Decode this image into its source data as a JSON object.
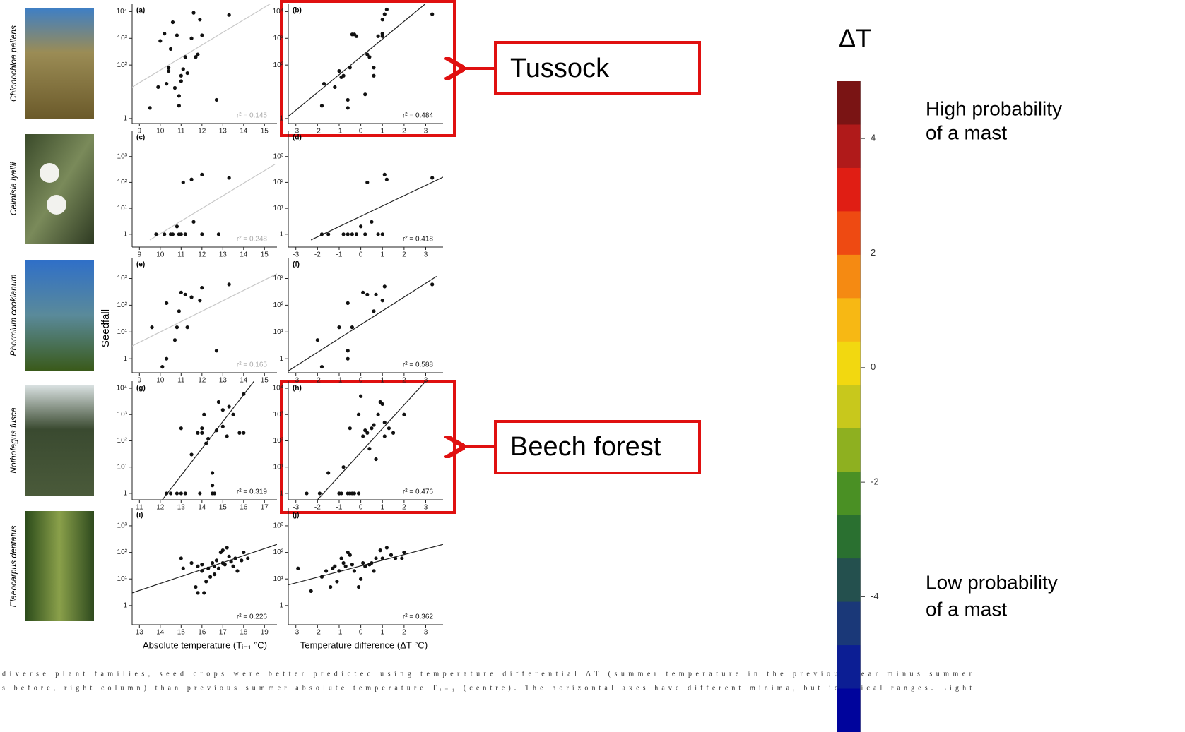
{
  "figure": {
    "y_label": "Seedfall",
    "species": [
      "Chionochloa pallens",
      "Celmisia lyallii",
      "Phormium cookianum",
      "Nothofagus fusca",
      "Elaeocarpus dentatus"
    ],
    "x_labels": [
      "Absolute temperature (Tᵢ₋₁ °C)",
      "Temperature difference (ΔT °C)"
    ],
    "log_y": true,
    "panels": [
      {
        "label": "(a)",
        "xlim": [
          8.65,
          15.6
        ],
        "xticks": [
          9,
          10,
          11,
          12,
          13,
          14,
          15
        ],
        "ylim": [
          0.65,
          20000
        ],
        "yticks": [
          1,
          {
            "value": 100,
            "label": "10²"
          },
          {
            "value": 1000,
            "label": "10³"
          },
          {
            "value": 10000,
            "label": "10⁴"
          }
        ],
        "x": [
          9.5,
          9.9,
          10,
          10.2,
          10.3,
          10.4,
          10.4,
          10.5,
          10.6,
          10.7,
          10.8,
          10.9,
          10.9,
          11,
          11,
          11.1,
          11.2,
          11.3,
          11.5,
          11.6,
          11.7,
          11.8,
          11.9,
          12,
          12.7,
          13.3
        ],
        "y": [
          2.5,
          15,
          800,
          1500,
          20,
          60,
          80,
          400,
          4000,
          14,
          1300,
          3,
          7,
          40,
          25,
          70,
          200,
          50,
          1000,
          9000,
          200,
          250,
          5000,
          1300,
          5,
          7500
        ],
        "fit_x": [
          8.65,
          15.3
        ],
        "fit_y": [
          15,
          20000
        ],
        "fit_color": "#c8c8c8",
        "r2": "r² = 0.145"
      },
      {
        "label": "(b)",
        "xlim": [
          -3.35,
          3.8
        ],
        "xticks": [
          -3,
          -2,
          -1,
          0,
          1,
          2,
          3
        ],
        "ylim": [
          0.65,
          20000
        ],
        "yticks": [
          1,
          {
            "value": 100,
            "label": "10²"
          },
          {
            "value": 1000,
            "label": "10³"
          },
          {
            "value": 10000,
            "label": "10⁴"
          }
        ],
        "x": [
          -1.8,
          -1.7,
          -1.2,
          -1,
          -0.9,
          -0.8,
          -0.6,
          -0.6,
          -0.5,
          -0.4,
          -0.3,
          -0.2,
          0.2,
          0.3,
          0.4,
          0.6,
          0.6,
          0.8,
          1,
          1,
          1,
          1.1,
          1.2,
          3.3
        ],
        "y": [
          3,
          20,
          15,
          60,
          35,
          40,
          2.5,
          5,
          80,
          1400,
          1400,
          1200,
          8,
          250,
          200,
          40,
          80,
          1200,
          1200,
          1500,
          5000,
          8000,
          12000,
          8000
        ],
        "fit_x": [
          -3.35,
          3
        ],
        "fit_y": [
          1.2,
          20000
        ],
        "fit_color": "#222222",
        "r2": "r² = 0.484"
      },
      {
        "label": "(c)",
        "xlim": [
          8.65,
          15.6
        ],
        "xticks": [
          9,
          10,
          11,
          12,
          13,
          14,
          15
        ],
        "ylim": [
          0.32,
          10000
        ],
        "yticks": [
          1,
          {
            "value": 10,
            "label": "10¹"
          },
          {
            "value": 100,
            "label": "10²"
          },
          {
            "value": 1000,
            "label": "10³"
          }
        ],
        "x": [
          9.8,
          10.2,
          10.5,
          10.6,
          10.8,
          10.9,
          11,
          11.1,
          11.2,
          11.5,
          11.6,
          12,
          12,
          12.8,
          13.3
        ],
        "y": [
          1,
          1,
          1,
          1,
          2,
          1,
          1,
          100,
          1,
          130,
          3,
          200,
          1,
          1,
          150
        ],
        "fit_x": [
          9.5,
          15.5
        ],
        "fit_y": [
          0.6,
          500
        ],
        "fit_color": "#c8c8c8",
        "r2": "r² = 0.248"
      },
      {
        "label": "(d)",
        "xlim": [
          -3.35,
          3.8
        ],
        "xticks": [
          -3,
          -2,
          -1,
          0,
          1,
          2,
          3
        ],
        "ylim": [
          0.32,
          10000
        ],
        "yticks": [
          1,
          {
            "value": 10,
            "label": "10¹"
          },
          {
            "value": 100,
            "label": "10²"
          },
          {
            "value": 1000,
            "label": "10³"
          }
        ],
        "x": [
          -1.8,
          -1.5,
          -0.8,
          -0.6,
          -0.4,
          -0.2,
          0,
          0.2,
          0.3,
          0.5,
          0.8,
          1,
          1.1,
          1.2,
          3.3
        ],
        "y": [
          1,
          1,
          1,
          1,
          1,
          1,
          2,
          1,
          100,
          3,
          1,
          1,
          200,
          130,
          150
        ],
        "fit_x": [
          -2.3,
          3.8
        ],
        "fit_y": [
          0.6,
          160
        ],
        "fit_color": "#222222",
        "r2": "r² = 0.418"
      },
      {
        "label": "(e)",
        "xlim": [
          8.65,
          15.6
        ],
        "xticks": [
          9,
          10,
          11,
          12,
          13,
          14,
          15
        ],
        "ylim": [
          0.3,
          6000
        ],
        "yticks": [
          1,
          {
            "value": 10,
            "label": "10¹"
          },
          {
            "value": 100,
            "label": "10²"
          },
          {
            "value": 1000,
            "label": "10³"
          }
        ],
        "x": [
          9.6,
          10.1,
          10.3,
          10.3,
          10.7,
          10.8,
          10.9,
          11,
          11.2,
          11.3,
          11.5,
          11.9,
          12,
          12.7,
          13.3
        ],
        "y": [
          15,
          0.5,
          1,
          120,
          5,
          15,
          60,
          300,
          250,
          15,
          200,
          150,
          450,
          2,
          600
        ],
        "fit_x": [
          8.65,
          15.6
        ],
        "fit_y": [
          3,
          1500
        ],
        "fit_color": "#c8c8c8",
        "r2": "r² = 0.165"
      },
      {
        "label": "(f)",
        "xlim": [
          -3.35,
          3.8
        ],
        "xticks": [
          -3,
          -2,
          -1,
          0,
          1,
          2,
          3
        ],
        "ylim": [
          0.3,
          6000
        ],
        "yticks": [
          1,
          {
            "value": 10,
            "label": "10¹"
          },
          {
            "value": 100,
            "label": "10²"
          },
          {
            "value": 1000,
            "label": "10³"
          }
        ],
        "x": [
          -2,
          -1.8,
          -1,
          -0.6,
          -0.6,
          -0.6,
          -0.4,
          0.1,
          0.3,
          0.6,
          0.7,
          1,
          1.1,
          3.3
        ],
        "y": [
          5,
          0.5,
          15,
          1,
          2,
          120,
          15,
          300,
          250,
          60,
          250,
          150,
          500,
          600
        ],
        "fit_x": [
          -3.35,
          3.5
        ],
        "fit_y": [
          0.35,
          1200
        ],
        "fit_color": "#222222",
        "r2": "r² = 0.588"
      },
      {
        "label": "(g)",
        "xlim": [
          10.65,
          17.6
        ],
        "xticks": [
          11,
          12,
          13,
          14,
          15,
          16,
          17
        ],
        "ylim": [
          0.57,
          18600
        ],
        "yticks": [
          1,
          {
            "value": 10,
            "label": "10¹"
          },
          {
            "value": 100,
            "label": "10²"
          },
          {
            "value": 1000,
            "label": "10³"
          },
          {
            "value": 10000,
            "label": "10⁴"
          }
        ],
        "x": [
          12.3,
          12.5,
          12.8,
          13,
          13.2,
          13,
          13.5,
          13.8,
          13.9,
          14,
          14,
          14.1,
          14.2,
          14.3,
          14.5,
          14.5,
          14.5,
          14.6,
          14.7,
          14.8,
          15,
          15,
          15.2,
          15.3,
          15.5,
          15.8,
          16,
          16
        ],
        "y": [
          1,
          1,
          1,
          1,
          1,
          300,
          30,
          200,
          1,
          300,
          200,
          1000,
          80,
          120,
          6,
          2,
          1,
          1,
          250,
          3000,
          1500,
          350,
          150,
          2000,
          1000,
          200,
          6000,
          200
        ],
        "fit_x": [
          12.1,
          16.5
        ],
        "fit_y": [
          0.57,
          18600
        ],
        "fit_color": "#222222",
        "r2": "r² = 0.319"
      },
      {
        "label": "(h)",
        "xlim": [
          -3.35,
          3.8
        ],
        "xticks": [
          -3,
          -2,
          -1,
          0,
          1,
          2,
          3
        ],
        "ylim": [
          0.57,
          18600
        ],
        "yticks": [
          1,
          {
            "value": 10,
            "label": "10¹"
          },
          {
            "value": 100,
            "label": "10²"
          },
          {
            "value": 1000,
            "label": "10³"
          },
          {
            "value": 10000,
            "label": "10⁴"
          }
        ],
        "x": [
          -2.5,
          -1.9,
          -1.5,
          -1,
          -1,
          -0.9,
          -0.8,
          -0.6,
          -0.5,
          -0.4,
          -0.3,
          -0.1,
          -0.5,
          -0.1,
          0,
          0.1,
          0.2,
          0.3,
          0.4,
          0.5,
          0.6,
          0.7,
          0.8,
          0.9,
          1,
          1.1,
          1.1,
          1.3,
          1.5,
          2
        ],
        "y": [
          1,
          1,
          6,
          1,
          1,
          1,
          10,
          1,
          1,
          1,
          1,
          1,
          300,
          1000,
          5000,
          150,
          250,
          200,
          50,
          300,
          400,
          20,
          1000,
          3000,
          2500,
          500,
          150,
          300,
          200,
          1000
        ],
        "fit_x": [
          -2,
          3
        ],
        "fit_y": [
          0.57,
          18600
        ],
        "fit_color": "#222222",
        "r2": "r² = 0.476"
      },
      {
        "label": "(i)",
        "xlim": [
          12.65,
          19.6
        ],
        "xticks": [
          13,
          14,
          15,
          16,
          17,
          18,
          19
        ],
        "ylim": [
          0.19,
          4600
        ],
        "yticks": [
          1,
          {
            "value": 10,
            "label": "10¹"
          },
          {
            "value": 100,
            "label": "10²"
          },
          {
            "value": 1000,
            "label": "10³"
          }
        ],
        "x": [
          15,
          15.1,
          15.5,
          15.7,
          15.8,
          15.8,
          16,
          16,
          16.1,
          16.2,
          16.3,
          16.4,
          16.5,
          16.6,
          16.6,
          16.7,
          16.8,
          16.9,
          17,
          17,
          17.1,
          17.2,
          17.3,
          17.4,
          17.5,
          17.6,
          17.7,
          17.9,
          18,
          18.2
        ],
        "y": [
          60,
          25,
          40,
          5,
          3,
          30,
          20,
          35,
          3,
          8,
          25,
          12,
          40,
          30,
          15,
          50,
          25,
          100,
          120,
          40,
          35,
          150,
          70,
          45,
          30,
          60,
          20,
          50,
          100,
          60
        ],
        "fit_x": [
          12.65,
          19.6
        ],
        "fit_y": [
          3,
          200
        ],
        "fit_color": "#222222",
        "r2": "r² = 0.226"
      },
      {
        "label": "(j)",
        "xlim": [
          -3.35,
          3.8
        ],
        "xticks": [
          -3,
          -2,
          -1,
          0,
          1,
          2,
          3
        ],
        "ylim": [
          0.19,
          4600
        ],
        "yticks": [
          1,
          {
            "value": 10,
            "label": "10¹"
          },
          {
            "value": 100,
            "label": "10²"
          },
          {
            "value": 1000,
            "label": "10³"
          }
        ],
        "x": [
          -2.9,
          -2.3,
          -1.8,
          -1.6,
          -1.4,
          -1.3,
          -1.2,
          -1.1,
          -1,
          -0.9,
          -0.8,
          -0.7,
          -0.6,
          -0.5,
          -0.4,
          -0.3,
          -0.1,
          0,
          0.1,
          0.2,
          0.4,
          0.5,
          0.6,
          0.7,
          0.9,
          1,
          1.2,
          1.4,
          1.6,
          1.9,
          2
        ],
        "y": [
          25,
          3.5,
          12,
          20,
          5,
          25,
          30,
          8,
          20,
          60,
          40,
          30,
          100,
          80,
          35,
          20,
          5,
          10,
          40,
          30,
          35,
          40,
          20,
          60,
          120,
          60,
          150,
          80,
          60,
          60,
          100
        ],
        "fit_x": [
          -3.35,
          3.8
        ],
        "fit_y": [
          6,
          200
        ],
        "fit_color": "#222222",
        "r2": "r² = 0.362"
      }
    ],
    "caption": [
      "diverse plant families, seed crops were better predicted using temperature differential ΔT (summer temperature in the previous year minus summer",
      "s before, right column) than previous summer absolute temperature Tᵢ₋₁ (centre). The horizontal axes have different minima, but identical ranges. Light"
    ]
  },
  "callouts": [
    {
      "text": "Tussock"
    },
    {
      "text": "Beech forest"
    }
  ],
  "colorbar": {
    "title": "ΔT",
    "lim": [
      -6.36,
      5
    ],
    "ticks": [
      4,
      2,
      0,
      -2,
      -4
    ],
    "colors": [
      "#7a1414",
      "#b01a1a",
      "#e01e14",
      "#ee4a12",
      "#f58a12",
      "#f7b814",
      "#f2d810",
      "#c8c81c",
      "#8eb020",
      "#4a9024",
      "#2a7030",
      "#24504e",
      "#1a3878",
      "#0c1e94",
      "#00049c"
    ],
    "high_label": [
      "High probability",
      "of a mast"
    ],
    "low_label": [
      "Low probability",
      "of a mast"
    ]
  }
}
